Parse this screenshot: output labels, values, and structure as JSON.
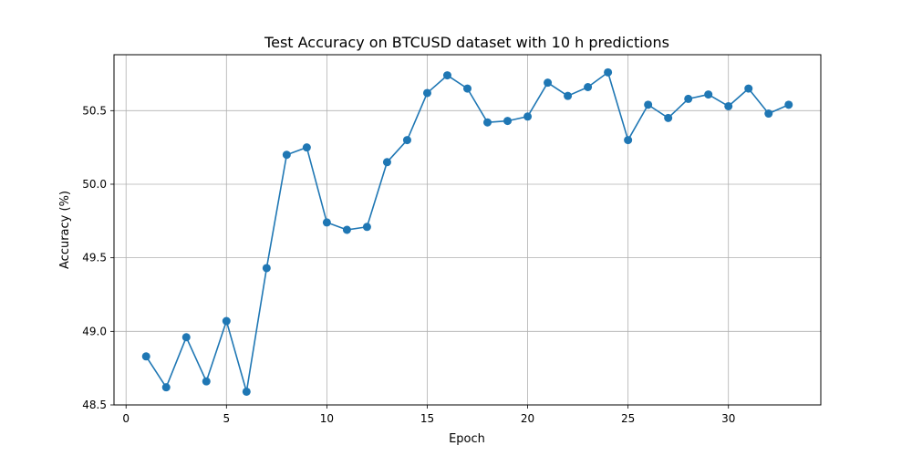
{
  "chart_data": {
    "type": "line",
    "title": "Test Accuracy on BTCUSD dataset with 10 h predictions",
    "xlabel": "Epoch",
    "ylabel": "Accuracy (%)",
    "xlim": [
      -0.6,
      34.6
    ],
    "ylim": [
      48.5,
      50.88
    ],
    "x_ticks": [
      0,
      5,
      10,
      15,
      20,
      25,
      30
    ],
    "y_ticks": [
      48.5,
      49.0,
      49.5,
      50.0,
      50.5
    ],
    "x_tick_labels": [
      "0",
      "5",
      "10",
      "15",
      "20",
      "25",
      "30"
    ],
    "y_tick_labels": [
      "48.5",
      "49.0",
      "49.5",
      "50.0",
      "50.5"
    ],
    "grid": true,
    "series": [
      {
        "color": "#1f77b4",
        "marker": "circle",
        "x": [
          1,
          2,
          3,
          4,
          5,
          6,
          7,
          8,
          9,
          10,
          11,
          12,
          13,
          14,
          15,
          16,
          17,
          18,
          19,
          20,
          21,
          22,
          23,
          24,
          25,
          26,
          27,
          28,
          29,
          30,
          31,
          32,
          33
        ],
        "y": [
          48.83,
          48.62,
          48.96,
          48.66,
          49.07,
          48.59,
          49.43,
          50.2,
          50.25,
          49.74,
          49.69,
          49.71,
          50.15,
          50.3,
          50.62,
          50.74,
          50.65,
          50.42,
          50.43,
          50.46,
          50.69,
          50.6,
          50.66,
          50.76,
          50.3,
          50.54,
          50.45,
          50.58,
          50.61,
          50.53,
          50.65,
          50.48,
          50.54
        ]
      }
    ]
  }
}
